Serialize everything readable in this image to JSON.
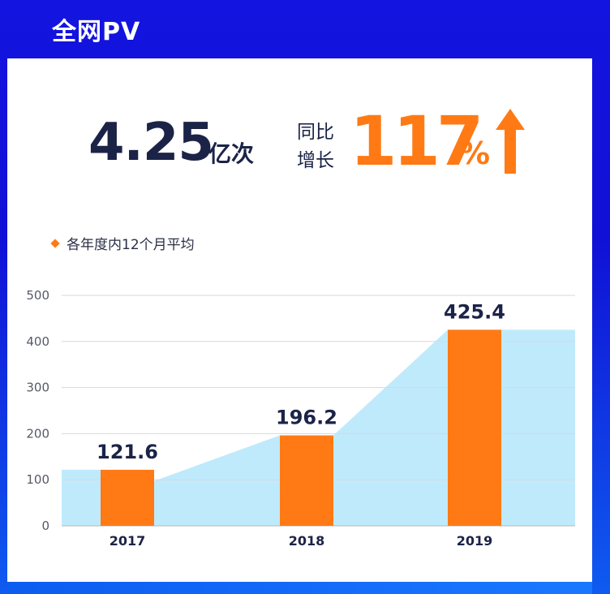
{
  "header": {
    "title": "全网PV"
  },
  "kpi": {
    "value": "4.25",
    "unit": "亿次",
    "growth_label_line1": "同比",
    "growth_label_line2": "增长",
    "growth_value": "117",
    "growth_unit": "%",
    "trend_icon": "arrow-up-icon"
  },
  "colors": {
    "header_bg": "#1010d8",
    "bar": "#ff7a14",
    "area": "#bfeafc",
    "text_dark": "#1b2347",
    "accent": "#ff7a14"
  },
  "chart_data": {
    "type": "bar",
    "categories": [
      "2017",
      "2018",
      "2019"
    ],
    "series": [
      {
        "name": "各年度内12个月平均",
        "values": [
          121.6,
          196.2,
          425.4
        ]
      }
    ],
    "data_labels": [
      "121.6",
      "196.2",
      "425.4"
    ],
    "ylim": [
      0,
      500
    ],
    "yticks": [
      0,
      100,
      200,
      300,
      400,
      500
    ],
    "grid": true,
    "legend": "top-left",
    "background_area": true
  }
}
